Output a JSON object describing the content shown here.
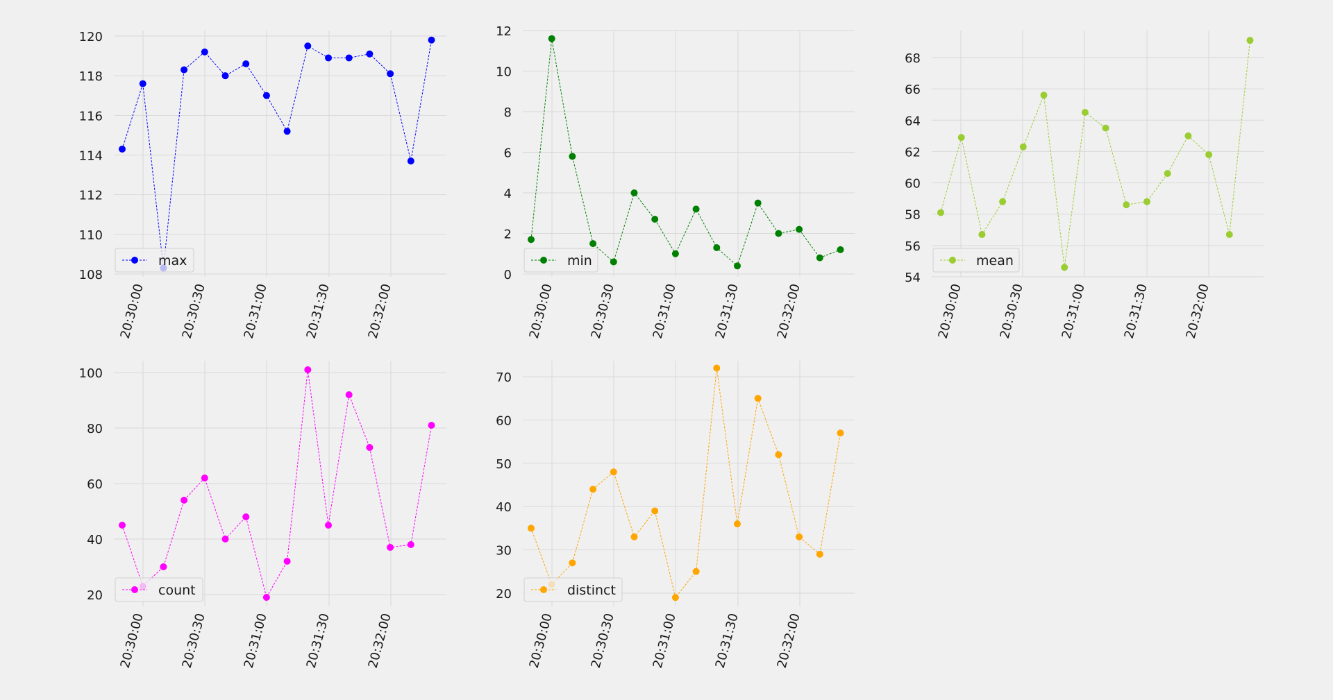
{
  "chart_data": [
    {
      "type": "line",
      "title": "",
      "xlabel": "",
      "ylabel": "",
      "x": [
        "20:29:50",
        "20:30:00",
        "20:30:10",
        "20:30:20",
        "20:30:30",
        "20:30:40",
        "20:30:50",
        "20:31:00",
        "20:31:10",
        "20:31:20",
        "20:31:30",
        "20:31:40",
        "20:31:50",
        "20:32:00",
        "20:32:10",
        "20:32:20"
      ],
      "xticks": [
        "20:30:00",
        "20:30:30",
        "20:31:00",
        "20:31:30",
        "20:32:00"
      ],
      "series": [
        {
          "name": "max",
          "color": "#0000ff",
          "values": [
            114.3,
            117.6,
            108.3,
            118.3,
            119.2,
            118.0,
            118.6,
            117.0,
            115.2,
            119.5,
            118.9,
            118.9,
            119.1,
            118.1,
            113.7,
            119.8
          ]
        }
      ],
      "ylim": [
        108,
        120
      ],
      "yticks": [
        108,
        110,
        112,
        114,
        116,
        118,
        120
      ],
      "legend": "lower-left",
      "grid": true
    },
    {
      "type": "line",
      "title": "",
      "xlabel": "",
      "ylabel": "",
      "x": [
        "20:29:50",
        "20:30:00",
        "20:30:10",
        "20:30:20",
        "20:30:30",
        "20:30:40",
        "20:30:50",
        "20:31:00",
        "20:31:10",
        "20:31:20",
        "20:31:30",
        "20:31:40",
        "20:31:50",
        "20:32:00",
        "20:32:10",
        "20:32:20"
      ],
      "xticks": [
        "20:30:00",
        "20:30:30",
        "20:31:00",
        "20:31:30",
        "20:32:00"
      ],
      "series": [
        {
          "name": "min",
          "color": "#008000",
          "values": [
            1.7,
            11.6,
            5.8,
            1.5,
            0.6,
            4.0,
            2.7,
            1.0,
            3.2,
            1.3,
            0.4,
            3.5,
            2.0,
            2.2,
            0.8,
            1.2
          ]
        }
      ],
      "ylim": [
        0,
        12
      ],
      "yticks": [
        0,
        2,
        4,
        6,
        8,
        10,
        12
      ],
      "legend": "lower-left",
      "grid": true
    },
    {
      "type": "line",
      "title": "",
      "xlabel": "",
      "ylabel": "",
      "x": [
        "20:29:50",
        "20:30:00",
        "20:30:10",
        "20:30:20",
        "20:30:30",
        "20:30:40",
        "20:30:50",
        "20:31:00",
        "20:31:10",
        "20:31:20",
        "20:31:30",
        "20:31:40",
        "20:31:50",
        "20:32:00",
        "20:32:10",
        "20:32:20"
      ],
      "xticks": [
        "20:30:00",
        "20:30:30",
        "20:31:00",
        "20:31:30",
        "20:32:00"
      ],
      "series": [
        {
          "name": "mean",
          "color": "#9acd32",
          "values": [
            58.1,
            62.9,
            56.7,
            58.8,
            62.3,
            65.6,
            54.6,
            64.5,
            63.5,
            58.6,
            58.8,
            60.6,
            63.0,
            61.8,
            56.7,
            69.1
          ]
        }
      ],
      "ylim": [
        54,
        68
      ],
      "yticks": [
        54,
        56,
        58,
        60,
        62,
        64,
        66,
        68
      ],
      "legend": "lower-left",
      "grid": true
    },
    {
      "type": "line",
      "title": "",
      "xlabel": "",
      "ylabel": "",
      "x": [
        "20:29:50",
        "20:30:00",
        "20:30:10",
        "20:30:20",
        "20:30:30",
        "20:30:40",
        "20:30:50",
        "20:31:00",
        "20:31:10",
        "20:31:20",
        "20:31:30",
        "20:31:40",
        "20:31:50",
        "20:32:00",
        "20:32:10",
        "20:32:20"
      ],
      "xticks": [
        "20:30:00",
        "20:30:30",
        "20:31:00",
        "20:31:30",
        "20:32:00"
      ],
      "series": [
        {
          "name": "count",
          "color": "#ff00ff",
          "values": [
            45,
            23,
            30,
            54,
            62,
            40,
            48,
            19,
            32,
            101,
            45,
            92,
            73,
            37,
            38,
            81
          ]
        }
      ],
      "ylim": [
        20,
        100
      ],
      "yticks": [
        20,
        40,
        60,
        80,
        100
      ],
      "legend": "lower-left",
      "grid": true
    },
    {
      "type": "line",
      "title": "",
      "xlabel": "",
      "ylabel": "",
      "x": [
        "20:29:50",
        "20:30:00",
        "20:30:10",
        "20:30:20",
        "20:30:30",
        "20:30:40",
        "20:30:50",
        "20:31:00",
        "20:31:10",
        "20:31:20",
        "20:31:30",
        "20:31:40",
        "20:31:50",
        "20:32:00",
        "20:32:10",
        "20:32:20"
      ],
      "xticks": [
        "20:30:00",
        "20:30:30",
        "20:31:00",
        "20:31:30",
        "20:32:00"
      ],
      "series": [
        {
          "name": "distinct",
          "color": "#ffa500",
          "values": [
            35,
            22,
            27,
            44,
            48,
            33,
            39,
            19,
            25,
            72,
            36,
            65,
            52,
            33,
            29,
            57
          ]
        }
      ],
      "ylim": [
        20,
        70
      ],
      "yticks": [
        20,
        30,
        40,
        50,
        60,
        70
      ],
      "legend": "lower-left",
      "grid": true
    }
  ]
}
